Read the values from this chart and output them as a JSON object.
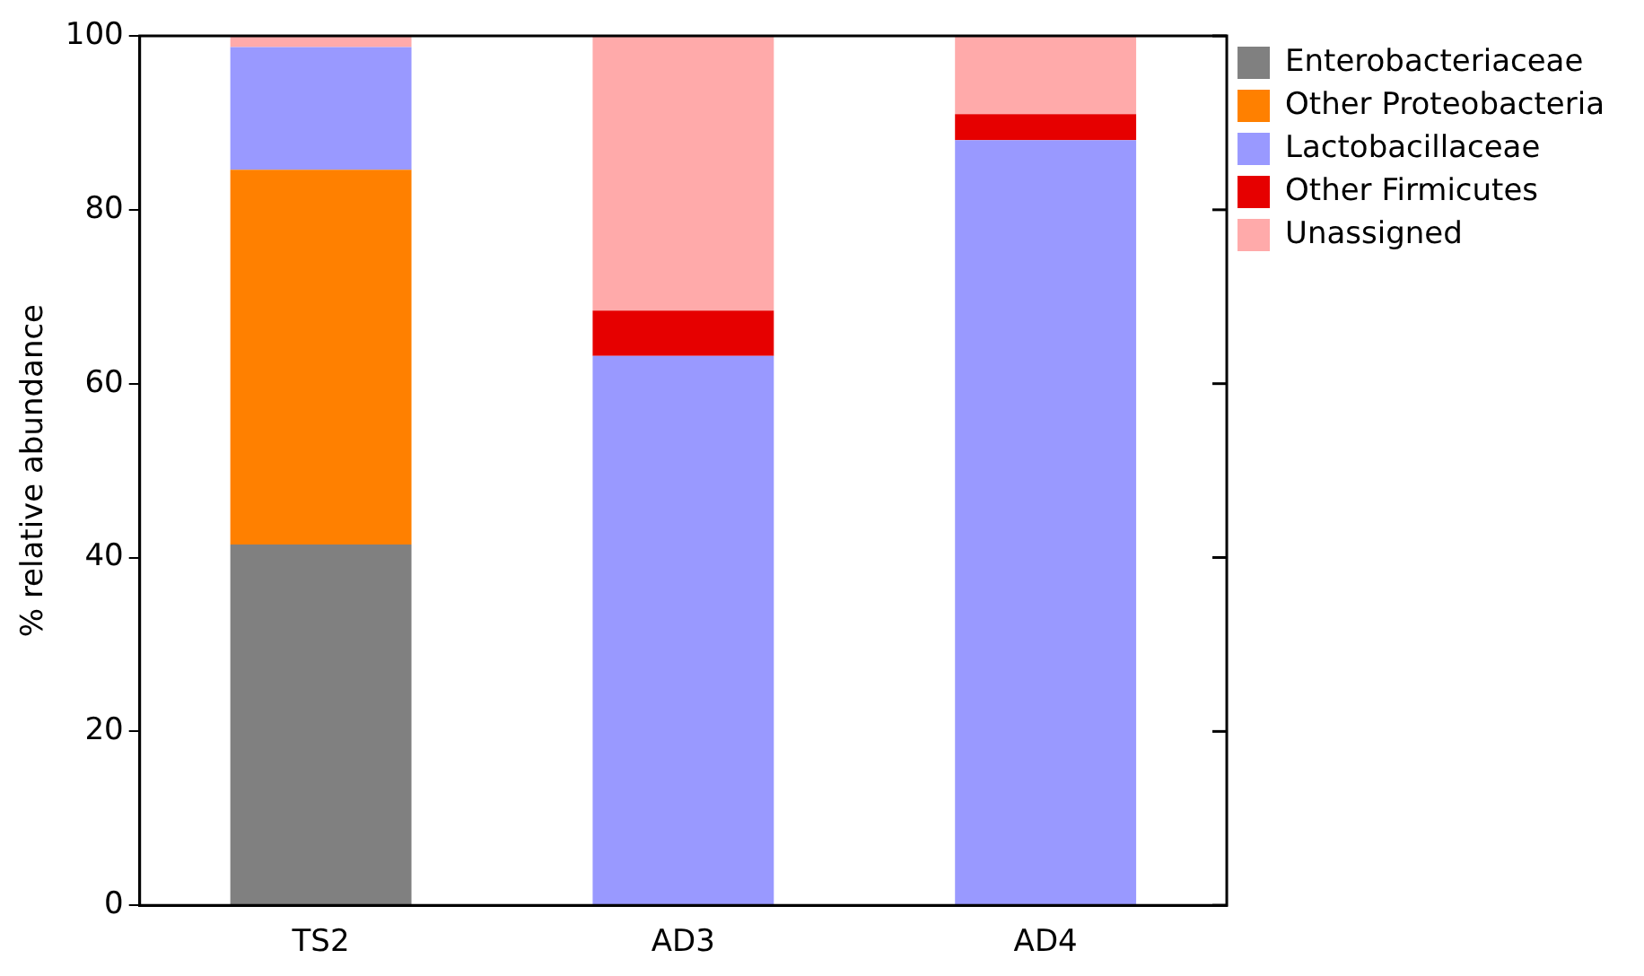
{
  "chart_data": {
    "type": "bar",
    "stacked": true,
    "ylabel": "% relative abundance",
    "categories": [
      "TS2",
      "AD3",
      "AD4"
    ],
    "series": [
      {
        "name": "Enterobacteriaceae",
        "color": "#808080",
        "values": [
          41.5,
          0,
          0
        ]
      },
      {
        "name": "Other Proteobacteria",
        "color": "#ff8000",
        "values": [
          43.1,
          0,
          0
        ]
      },
      {
        "name": "Lactobacillaceae",
        "color": "#9999ff",
        "values": [
          14.1,
          63.2,
          88.0
        ]
      },
      {
        "name": "Other Firmicutes",
        "color": "#e60000",
        "values": [
          0,
          5.2,
          3.0
        ]
      },
      {
        "name": "Unassigned",
        "color": "#ffaaaa",
        "values": [
          1.3,
          31.6,
          9.0
        ]
      }
    ],
    "ylim": [
      0,
      100
    ],
    "yticks": [
      0,
      20,
      40,
      60,
      80,
      100
    ],
    "grid": false,
    "legend": "top right"
  }
}
